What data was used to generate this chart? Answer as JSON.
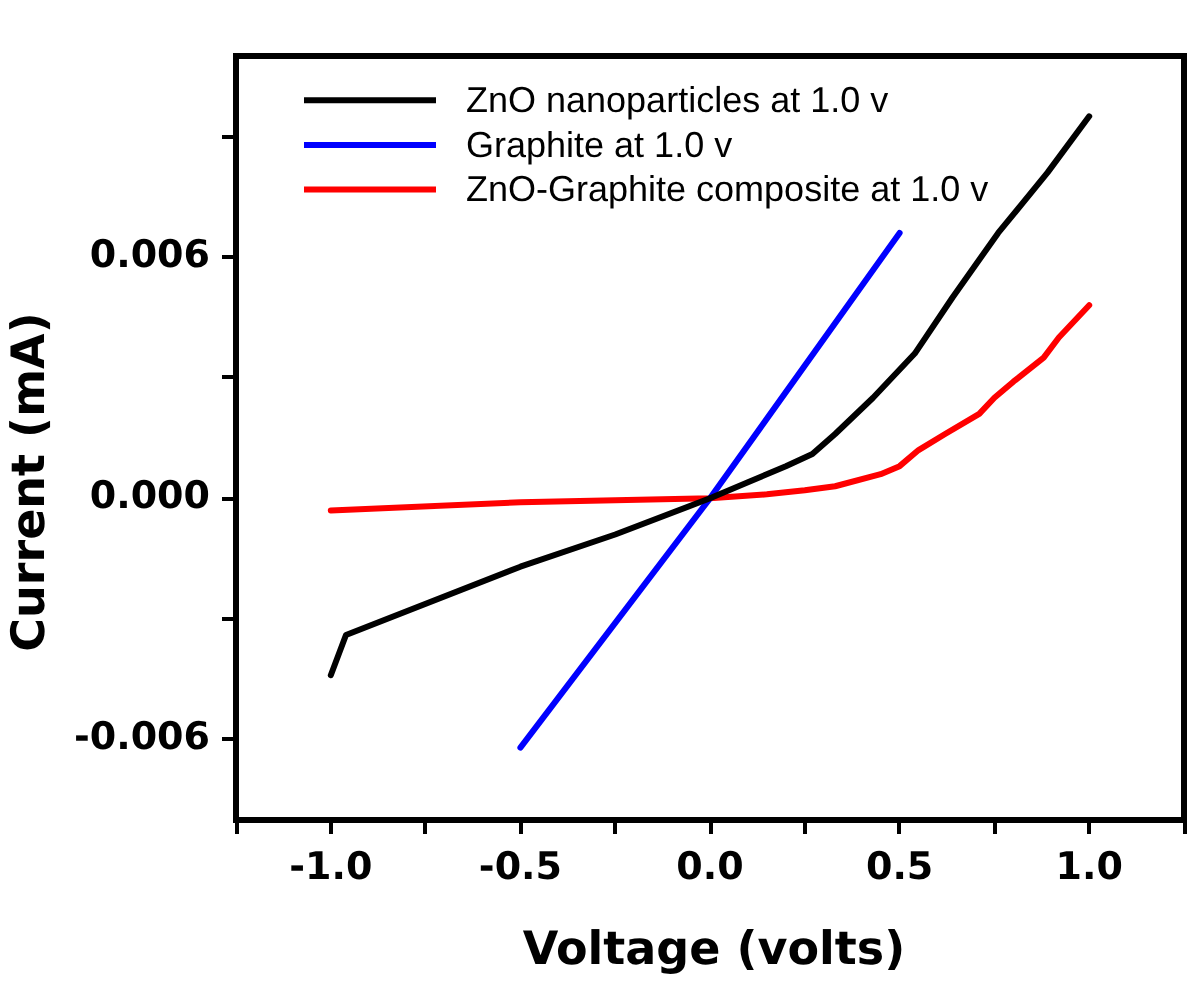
{
  "chart_data": {
    "type": "line",
    "xlabel": "Voltage (volts)",
    "ylabel": "Current (mA)",
    "xlim": [
      -1.25,
      1.25
    ],
    "ylim": [
      -0.008,
      0.011
    ],
    "xticks": [
      {
        "value": -1.25,
        "label": null
      },
      {
        "value": -1,
        "label": "-1.0"
      },
      {
        "value": -0.75,
        "label": null
      },
      {
        "value": -0.5,
        "label": "-0.5"
      },
      {
        "value": -0.25,
        "label": null
      },
      {
        "value": 0,
        "label": "0.0"
      },
      {
        "value": 0.25,
        "label": null
      },
      {
        "value": 0.5,
        "label": "0.5"
      },
      {
        "value": 0.75,
        "label": null
      },
      {
        "value": 1,
        "label": "1.0"
      },
      {
        "value": 1.25,
        "label": null
      }
    ],
    "yticks": [
      {
        "value": -0.006,
        "label": "-0.006"
      },
      {
        "value": -0.003,
        "label": null
      },
      {
        "value": 0,
        "label": "0.000"
      },
      {
        "value": 0.003,
        "label": null
      },
      {
        "value": 0.006,
        "label": "0.006"
      },
      {
        "value": 0.009,
        "label": null
      }
    ],
    "series": [
      {
        "name": "ZnO nanoparticles at 1.0 v",
        "color": "#000000",
        "x": [
          -1.0,
          -0.96,
          -0.5,
          -0.25,
          0,
          0.1,
          0.2,
          0.27,
          0.33,
          0.43,
          0.54,
          0.64,
          0.76,
          0.89,
          1.0
        ],
        "values": [
          -0.0044,
          -0.0034,
          -0.0017,
          -0.0009,
          0,
          0.0004,
          0.0008,
          0.0011,
          0.0016,
          0.0025,
          0.0036,
          0.005,
          0.0066,
          0.0081,
          0.0095
        ]
      },
      {
        "name": "Graphite at 1.0 v",
        "color": "#0000ff",
        "x": [
          -0.5,
          0,
          0.5
        ],
        "values": [
          -0.0062,
          0,
          0.0066
        ]
      },
      {
        "name": "ZnO-Graphite composite at 1.0 v",
        "color": "#ff0000",
        "x": [
          -1.0,
          -0.5,
          0,
          0.15,
          0.25,
          0.33,
          0.45,
          0.5,
          0.55,
          0.62,
          0.71,
          0.75,
          0.8,
          0.88,
          0.92,
          1.0
        ],
        "values": [
          -0.0003,
          -0.0001,
          0,
          0.0001,
          0.0002,
          0.0003,
          0.0006,
          0.0008,
          0.0012,
          0.0016,
          0.0021,
          0.0025,
          0.0029,
          0.0035,
          0.004,
          0.0048
        ]
      }
    ],
    "legend": "top left",
    "marker": "none"
  }
}
